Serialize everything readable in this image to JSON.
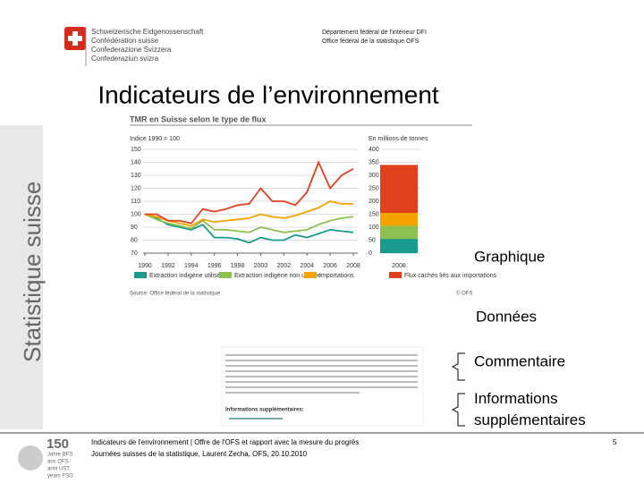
{
  "header": {
    "confederation": [
      "Schweizerische Eidgenossenschaft",
      "Confédération suisse",
      "Confederazione Svizzera",
      "Confederaziun svizra"
    ],
    "department": [
      "Département fédéral de l'intérieur DFI",
      "Office fédéral de la statistique OFS"
    ]
  },
  "sidebar": "Statistique suisse",
  "title": "Indicateurs de l’environnement",
  "chart": {
    "type": "line",
    "title": "TMR en Suisse selon le type de flux",
    "left_subtitle": "Indice 1990 = 100",
    "right_subtitle": "En millions de tonnes",
    "x": [
      1990,
      1991,
      1992,
      1993,
      1994,
      1995,
      1996,
      1997,
      1998,
      1999,
      2000,
      2001,
      2002,
      2003,
      2004,
      2005,
      2006,
      2007,
      2008
    ],
    "xticks": [
      1990,
      1992,
      1994,
      1996,
      1998,
      2000,
      2002,
      2004,
      2006,
      2008
    ],
    "xlim": [
      1990,
      2008
    ],
    "ylim": [
      70,
      150
    ],
    "yticks": [
      70,
      80,
      90,
      100,
      110,
      120,
      130,
      140,
      150
    ],
    "series": [
      {
        "name": "Extraction indigène utilisée",
        "color": "#1a9a8c",
        "values": [
          100,
          97,
          92,
          90,
          88,
          92,
          82,
          82,
          81,
          78,
          82,
          80,
          80,
          84,
          82,
          85,
          88,
          87,
          86
        ]
      },
      {
        "name": "Extraction indigène non utilisée",
        "color": "#8cc152",
        "values": [
          100,
          96,
          93,
          91,
          89,
          95,
          88,
          88,
          87,
          86,
          90,
          88,
          86,
          87,
          88,
          92,
          95,
          97,
          98
        ]
      },
      {
        "name": "Importations",
        "color": "#f5a300",
        "values": [
          100,
          98,
          95,
          93,
          91,
          96,
          94,
          95,
          96,
          97,
          100,
          98,
          97,
          99,
          102,
          105,
          110,
          108,
          108
        ]
      },
      {
        "name": "Flux cachés liés aux importations",
        "color": "#e0401c",
        "values": [
          100,
          100,
          95,
          95,
          93,
          104,
          102,
          104,
          107,
          108,
          120,
          110,
          110,
          107,
          117,
          140,
          120,
          130,
          135
        ]
      }
    ],
    "bar": {
      "category": "2008",
      "values": [
        55,
        50,
        50,
        185
      ]
    },
    "y2lim": [
      0,
      400
    ],
    "y2ticks": [
      0,
      50,
      100,
      150,
      200,
      250,
      300,
      350,
      400
    ],
    "source": "Source: Office fédéral de la statistique",
    "copyright": "© OFS"
  },
  "labels": [
    "Graphique",
    "Données",
    "Commentaire",
    "Informations supplémentaires"
  ],
  "comment_heading": "Informations supplémentaires:",
  "footer": {
    "line1": "Indicateurs de l'environnement | Offre de l'OFS et rapport avec la mesure du progrès",
    "line2": "Journées suisses de la statistique, Laurent Zecha, OFS, 20.10.2010",
    "page": "5",
    "logo_number": "150",
    "logo_text": [
      "Jahre BFS",
      "ans OFS",
      "anni UST",
      "years FSO"
    ]
  }
}
